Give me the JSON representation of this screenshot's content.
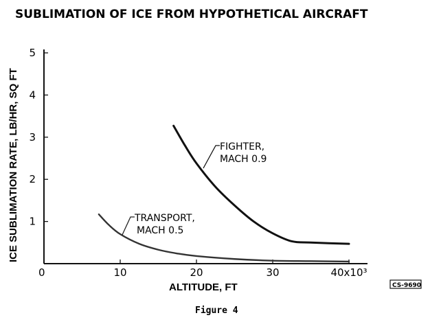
{
  "caption": "Figure 4",
  "stamp": "CS-9690",
  "chart_data": {
    "type": "line",
    "title": "SUBLIMATION OF ICE FROM HYPOTHETICAL AIRCRAFT",
    "xlabel": "ALTITUDE, FT",
    "ylabel": "ICE SUBLIMATION RATE, LB/HR, SQ FT",
    "xlim": [
      0,
      40000
    ],
    "ylim": [
      0,
      5
    ],
    "x_ticks": [
      "0",
      "10",
      "20",
      "30",
      "40x10³"
    ],
    "y_ticks": [
      "1",
      "2",
      "3",
      "4",
      "5"
    ],
    "grid": false,
    "series": [
      {
        "name": "FIGHTER, MACH 0.9",
        "label_lines": [
          "FIGHTER,",
          "MACH 0.9"
        ],
        "color": "#111111",
        "x": [
          17000,
          18500,
          20000,
          22500,
          25000,
          27500,
          30000,
          32500,
          35000,
          40000
        ],
        "y": [
          3.27,
          2.8,
          2.38,
          1.82,
          1.38,
          1.0,
          0.72,
          0.53,
          0.5,
          0.47
        ]
      },
      {
        "name": "TRANSPORT, MACH 0.5",
        "label_lines": [
          "TRANSPORT,",
          "MACH 0.5"
        ],
        "color": "#333333",
        "x": [
          7200,
          8500,
          10000,
          12500,
          15000,
          17500,
          20000,
          25000,
          30000,
          35000,
          40000
        ],
        "y": [
          1.17,
          0.92,
          0.7,
          0.47,
          0.33,
          0.24,
          0.18,
          0.11,
          0.07,
          0.06,
          0.05
        ]
      }
    ]
  }
}
